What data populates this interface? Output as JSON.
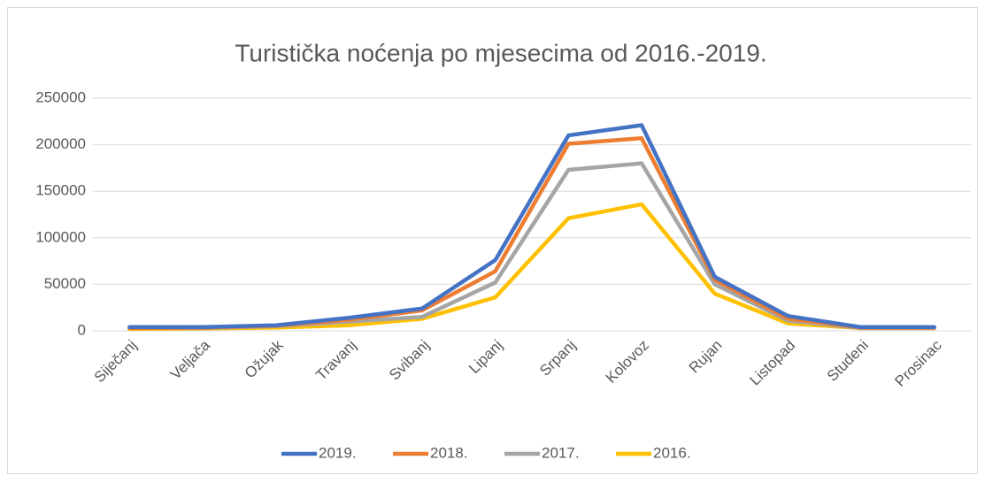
{
  "chart_data": {
    "type": "line",
    "title": "Turistička noćenja po mjesecima od 2016.-2019.",
    "categories": [
      "Siječanj",
      "Veljača",
      "Ožujak",
      "Travanj",
      "Svibanj",
      "Lipanj",
      "Srpanj",
      "Kolovoz",
      "Rujan",
      "Listopad",
      "Studeni",
      "Prosinac"
    ],
    "series": [
      {
        "name": "2019.",
        "color": "#4472c4",
        "values": [
          4000,
          4000,
          6000,
          14000,
          24000,
          76000,
          210000,
          221000,
          58000,
          16000,
          4000,
          4000
        ]
      },
      {
        "name": "2018.",
        "color": "#ed7d31",
        "values": [
          3000,
          3500,
          5500,
          12000,
          22000,
          64000,
          201000,
          207000,
          55000,
          13000,
          3500,
          3500
        ]
      },
      {
        "name": "2017.",
        "color": "#a5a5a5",
        "values": [
          3000,
          3000,
          5000,
          10000,
          15000,
          52000,
          173000,
          180000,
          50000,
          11000,
          3000,
          3000
        ]
      },
      {
        "name": "2016.",
        "color": "#ffc000",
        "values": [
          2000,
          2500,
          3500,
          6000,
          13000,
          36000,
          121000,
          136000,
          40000,
          8000,
          3000,
          3000
        ]
      }
    ],
    "ylim": [
      0,
      250000
    ],
    "yticks": [
      0,
      50000,
      100000,
      150000,
      200000,
      250000
    ],
    "grid": true,
    "legend": "bottom"
  }
}
